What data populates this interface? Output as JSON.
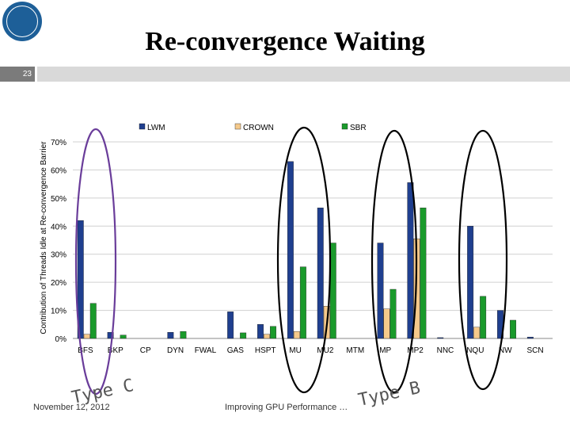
{
  "slide": {
    "title": "Re-convergence Waiting",
    "number": "23",
    "footer_date": "November 12, 2012",
    "footer_title": "Improving GPU Performance …",
    "annotation_c": "Type C",
    "annotation_b": "Type B",
    "colors": {
      "slide_bar": "#d9d9d9",
      "number_box": "#7b7b7b",
      "ellipse": "#6a3d9a",
      "ellipse_dark": "#000000"
    }
  },
  "chart_data": {
    "type": "bar",
    "ylabel": "Contribution of Threads Idle at Re-convergence Barrier",
    "xlabel": "",
    "ylim": [
      0,
      70
    ],
    "yticks": [
      0,
      10,
      20,
      30,
      40,
      50,
      60,
      70
    ],
    "ytick_labels": [
      "0%",
      "10%",
      "20%",
      "30%",
      "40%",
      "50%",
      "60%",
      "70%"
    ],
    "grid": true,
    "legend_position": "top",
    "categories": [
      "BFS",
      "BKP",
      "CP",
      "DYN",
      "FWAL",
      "GAS",
      "HSPT",
      "MU",
      "MU2",
      "MTM",
      "MP",
      "MP2",
      "NNC",
      "NQU",
      "NW",
      "SCN"
    ],
    "series": [
      {
        "name": "LWM",
        "color": "#1f3f8f",
        "values": [
          42,
          2.2,
          0,
          2.2,
          0,
          9.5,
          5,
          63,
          46.5,
          0,
          34,
          55.5,
          0.3,
          40,
          10,
          0.5
        ]
      },
      {
        "name": "CROWN",
        "color": "#f5c98b",
        "values": [
          1.5,
          0,
          0,
          0,
          0,
          0,
          1.5,
          2.5,
          11.5,
          0,
          10.5,
          35.5,
          0,
          4,
          0,
          0
        ]
      },
      {
        "name": "SBR",
        "color": "#1a9a2b",
        "values": [
          12.5,
          1.2,
          0,
          2.5,
          0,
          2,
          4.3,
          25.5,
          34,
          0,
          17.5,
          46.5,
          0,
          15,
          6.5,
          0
        ]
      }
    ]
  }
}
